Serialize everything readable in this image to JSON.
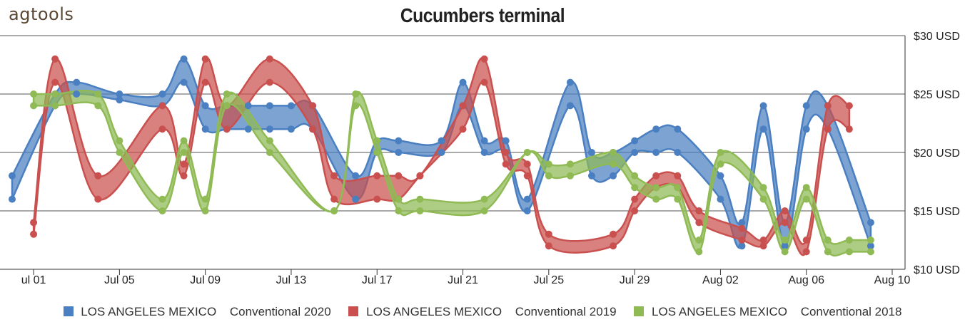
{
  "brand": {
    "logo_text": "agtools"
  },
  "chart_data": {
    "type": "area",
    "title": "Cucumbers terminal",
    "xlabel": "",
    "ylabel": "",
    "ylim": [
      10,
      30
    ],
    "xlim": [
      "2020-06-30",
      "2020-08-10"
    ],
    "grid": true,
    "legend_placement": "bottom-center",
    "y_ticks": [
      "$10 USD",
      "$15 USD",
      "$20 USD",
      "$25 USD",
      "$30 USD"
    ],
    "y_tick_values": [
      10,
      15,
      20,
      25,
      30
    ],
    "x_ticks": [
      "ul 01",
      "Jul 05",
      "Jul 09",
      "Jul 13",
      "Jul 17",
      "Jul 21",
      "Jul 25",
      "Jul 29",
      "Aug 02",
      "Aug 06",
      "Aug 10"
    ],
    "x_tick_dates": [
      "2020-07-01",
      "2020-07-05",
      "2020-07-09",
      "2020-07-13",
      "2020-07-17",
      "2020-07-21",
      "2020-07-25",
      "2020-07-29",
      "2020-08-02",
      "2020-08-06",
      "2020-08-10"
    ],
    "series": [
      {
        "name": "LOS ANGELES MEXICO",
        "label": "Conventional 2020",
        "color": "#4a7fc1",
        "x": [
          "2020-06-30",
          "2020-07-02",
          "2020-07-03",
          "2020-07-05",
          "2020-07-07",
          "2020-07-08",
          "2020-07-09",
          "2020-07-10",
          "2020-07-11",
          "2020-07-12",
          "2020-07-13",
          "2020-07-14",
          "2020-07-16",
          "2020-07-17",
          "2020-07-18",
          "2020-07-20",
          "2020-07-21",
          "2020-07-22",
          "2020-07-23",
          "2020-07-24",
          "2020-07-26",
          "2020-07-27",
          "2020-07-28",
          "2020-07-29",
          "2020-07-30",
          "2020-07-31",
          "2020-08-02",
          "2020-08-03",
          "2020-08-04",
          "2020-08-05",
          "2020-08-06",
          "2020-08-07",
          "2020-08-09"
        ],
        "low": [
          16,
          24,
          25,
          24.5,
          24,
          26,
          22,
          22,
          22,
          22,
          22,
          22,
          16,
          20,
          20,
          20,
          24,
          20,
          20,
          15,
          24,
          18,
          18,
          20,
          20,
          20,
          16,
          12,
          22,
          12,
          22,
          22,
          12
        ],
        "high": [
          18,
          25,
          26,
          25,
          25,
          28,
          24,
          24,
          24,
          24,
          24,
          24,
          18,
          21,
          21,
          21,
          26,
          21,
          21,
          16,
          26,
          20,
          20,
          21,
          22,
          22,
          18,
          14,
          24,
          14,
          24,
          24,
          14
        ]
      },
      {
        "name": "LOS ANGELES MEXICO",
        "label": "Conventional 2019",
        "color": "#c9504e",
        "x": [
          "2020-07-01",
          "2020-07-02",
          "2020-07-04",
          "2020-07-07",
          "2020-07-08",
          "2020-07-09",
          "2020-07-10",
          "2020-07-12",
          "2020-07-14",
          "2020-07-15",
          "2020-07-17",
          "2020-07-18",
          "2020-07-19",
          "2020-07-21",
          "2020-07-22",
          "2020-07-23",
          "2020-07-24",
          "2020-07-25",
          "2020-07-28",
          "2020-07-29",
          "2020-07-30",
          "2020-07-31",
          "2020-08-01",
          "2020-08-03",
          "2020-08-04",
          "2020-08-05",
          "2020-08-06",
          "2020-08-07",
          "2020-08-08"
        ],
        "low": [
          13,
          26,
          16,
          22,
          18,
          26,
          22,
          26,
          22,
          16,
          16,
          16,
          18,
          22,
          26,
          19,
          18,
          12,
          12,
          15,
          17,
          17,
          14,
          12.5,
          12,
          14,
          11.5,
          22,
          22
        ],
        "high": [
          14,
          28,
          18,
          24,
          19,
          28,
          24,
          28,
          24,
          18,
          18,
          18,
          18,
          24,
          28,
          20,
          19,
          13,
          13,
          16,
          18,
          18,
          15,
          13.5,
          12.5,
          15,
          12.5,
          24,
          24
        ]
      },
      {
        "name": "LOS ANGELES MEXICO",
        "label": "Conventional 2018",
        "color": "#8fba54",
        "x": [
          "2020-07-01",
          "2020-07-02",
          "2020-07-04",
          "2020-07-05",
          "2020-07-07",
          "2020-07-08",
          "2020-07-09",
          "2020-07-10",
          "2020-07-12",
          "2020-07-15",
          "2020-07-16",
          "2020-07-17",
          "2020-07-18",
          "2020-07-19",
          "2020-07-22",
          "2020-07-24",
          "2020-07-25",
          "2020-07-26",
          "2020-07-28",
          "2020-07-29",
          "2020-07-30",
          "2020-07-31",
          "2020-08-01",
          "2020-08-02",
          "2020-08-04",
          "2020-08-05",
          "2020-08-06",
          "2020-08-07",
          "2020-08-08",
          "2020-08-09"
        ],
        "low": [
          24,
          24,
          24,
          20,
          15,
          20,
          15,
          24,
          20,
          15,
          24,
          20,
          15,
          15,
          15,
          20,
          18,
          18,
          19,
          17,
          16,
          16,
          11.5,
          19,
          16,
          11.5,
          16,
          11.5,
          11.5,
          11.5
        ],
        "high": [
          25,
          25,
          25,
          21,
          16,
          21,
          16,
          25,
          21,
          15,
          25,
          21,
          16,
          16,
          16,
          20,
          19,
          19,
          20,
          18,
          17,
          17,
          12.5,
          20,
          17,
          12.5,
          17,
          12.5,
          12.5,
          12.5
        ]
      }
    ]
  }
}
